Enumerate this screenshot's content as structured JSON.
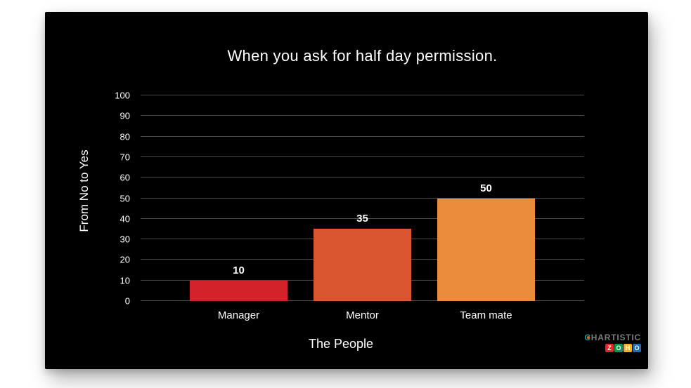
{
  "page": {
    "background_color": "#ffffff",
    "card_background_color": "#000000"
  },
  "chart_data": {
    "type": "bar",
    "title": "When you ask for half day permission.",
    "xlabel": "The People",
    "ylabel": "From No to Yes",
    "categories": [
      "Manager",
      "Mentor",
      "Team mate"
    ],
    "values": [
      10,
      35,
      50
    ],
    "bar_colors": [
      "#d2232a",
      "#d8552f",
      "#eb8c3d"
    ],
    "ylim": [
      0,
      100
    ],
    "yticks": [
      0,
      10,
      20,
      30,
      40,
      50,
      60,
      70,
      80,
      90,
      100
    ],
    "grid": true,
    "gridline_color": "#4c4c4c",
    "text_color": "#ffffff",
    "legend": "none"
  },
  "branding": {
    "chartistic_c": "C",
    "chartistic_rest": "HARTISTIC",
    "chartistic_text_color": "#7b7b7b",
    "zoho_letters": [
      {
        "letter": "Z",
        "color": "#e42527"
      },
      {
        "letter": "O",
        "color": "#089949"
      },
      {
        "letter": "H",
        "color": "#f9b21d"
      },
      {
        "letter": "O",
        "color": "#226db4"
      }
    ]
  }
}
